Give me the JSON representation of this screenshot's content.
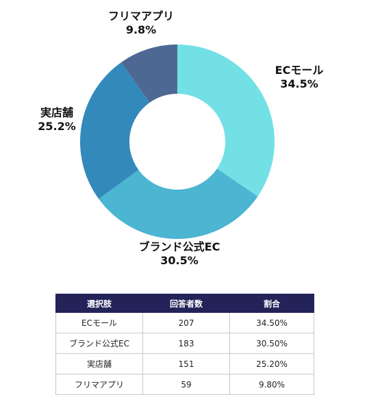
{
  "chart_data": {
    "type": "pie",
    "donut": true,
    "categories": [
      "ECモール",
      "ブランド公式EC",
      "実店舗",
      "フリマアプリ"
    ],
    "values": [
      34.5,
      30.5,
      25.2,
      9.8
    ],
    "value_labels": [
      "34.5%",
      "30.5%",
      "25.2%",
      "9.8%"
    ],
    "colors": [
      "#73e0e6",
      "#4bb5d2",
      "#3489bb",
      "#4e6894"
    ]
  },
  "table": {
    "headers": [
      "選択肢",
      "回答者数",
      "割合"
    ],
    "rows": [
      [
        "ECモール",
        "207",
        "34.50%"
      ],
      [
        "ブランド公式EC",
        "183",
        "30.50%"
      ],
      [
        "実店舗",
        "151",
        "25.20%"
      ],
      [
        "フリマアプリ",
        "59",
        "9.80%"
      ]
    ]
  }
}
